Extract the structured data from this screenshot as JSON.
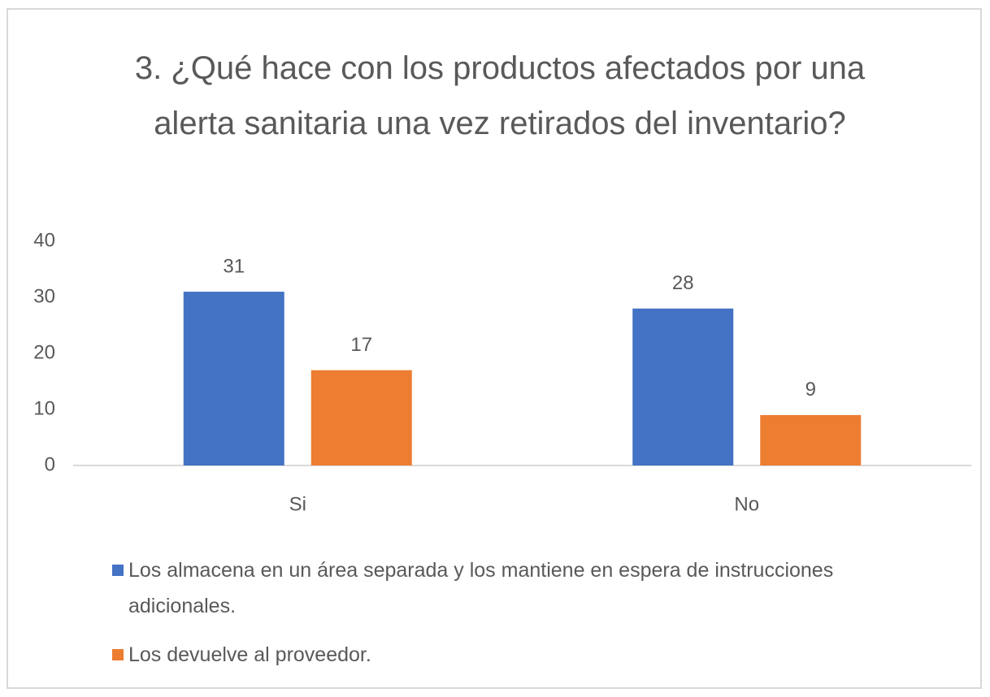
{
  "chart_data": {
    "type": "bar",
    "title": "3.  ¿Qué hace con los productos afectados por una alerta sanitaria una vez retirados del inventario?",
    "categories": [
      "Si",
      "No"
    ],
    "series": [
      {
        "name": "Los almacena en un área separada y los mantiene en espera de instrucciones adicionales.",
        "color": "#4472c4",
        "values": [
          31,
          28
        ]
      },
      {
        "name": "Los devuelve al proveedor.",
        "color": "#ed7d31",
        "values": [
          17,
          9
        ]
      }
    ],
    "ylim": [
      0,
      40
    ],
    "yticks": [
      0,
      10,
      20,
      30,
      40
    ],
    "grid": false,
    "legend": "bottom"
  }
}
